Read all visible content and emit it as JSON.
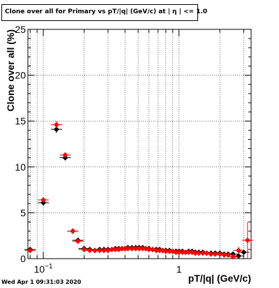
{
  "header": {
    "title": "Clone  over all for Primary vs pT/|q| (GeV/c) at |  η | <= 1.0"
  },
  "footer": {
    "date": "Wed Apr  1 09:31:03 2020"
  },
  "chart_data": {
    "type": "scatter",
    "title": "Clone  over all for Primary vs pT/|q| (GeV/c) at |  η | <= 1.0",
    "xlabel": "pT/|q| (GeV/c)",
    "ylabel": "Clone  over all (%)",
    "xscale": "log",
    "xlim": [
      0.077,
      3.4
    ],
    "ylim": [
      0,
      25
    ],
    "y_ticks": [
      "0",
      "5",
      "10",
      "15",
      "20",
      "25"
    ],
    "x_tick_labels": [
      {
        "value": 0.1,
        "label": "10",
        "sup": "−1"
      },
      {
        "value": 1,
        "label": "1"
      }
    ],
    "grid": true,
    "colors": {
      "series_red": "#ff0000",
      "series_black": "#000000"
    },
    "series": [
      {
        "color": "#000000",
        "marker": "diamond",
        "x": [
          0.08,
          0.1,
          0.125,
          0.145,
          0.165,
          0.18,
          0.2,
          0.22,
          0.24,
          0.26,
          0.28,
          0.3,
          0.32,
          0.34,
          0.36,
          0.38,
          0.4,
          0.42,
          0.45,
          0.48,
          0.51,
          0.54,
          0.57,
          0.6,
          0.64,
          0.68,
          0.72,
          0.76,
          0.8,
          0.85,
          0.9,
          0.95,
          1.0,
          1.06,
          1.12,
          1.18,
          1.25,
          1.32,
          1.4,
          1.5,
          1.6,
          1.72,
          1.85,
          2.0,
          2.15,
          2.3,
          2.5,
          2.75,
          3.0
        ],
        "y": [
          1.0,
          6.1,
          14.1,
          11.0,
          3.0,
          2.0,
          1.1,
          1.0,
          0.9,
          1.0,
          1.0,
          1.0,
          1.0,
          1.1,
          1.1,
          1.1,
          1.1,
          1.2,
          1.2,
          1.2,
          1.2,
          1.2,
          1.1,
          1.1,
          1.0,
          1.0,
          1.0,
          0.9,
          0.9,
          0.9,
          0.8,
          0.8,
          0.8,
          0.8,
          0.7,
          0.8,
          0.8,
          0.7,
          0.7,
          0.7,
          0.6,
          0.6,
          0.6,
          0.6,
          0.5,
          0.5,
          0.5,
          0.3,
          0.7
        ],
        "yerr": [
          0.2,
          0.3,
          0.4,
          0.3,
          0.2,
          0.15,
          0.1,
          0.1,
          0.1,
          0.1,
          0.1,
          0.1,
          0.1,
          0.1,
          0.1,
          0.1,
          0.1,
          0.1,
          0.1,
          0.1,
          0.1,
          0.1,
          0.1,
          0.1,
          0.1,
          0.1,
          0.1,
          0.1,
          0.1,
          0.1,
          0.1,
          0.1,
          0.1,
          0.1,
          0.1,
          0.1,
          0.1,
          0.1,
          0.1,
          0.1,
          0.1,
          0.1,
          0.1,
          0.1,
          0.1,
          0.2,
          0.2,
          0.3,
          0.3
        ]
      },
      {
        "color": "#ff0000",
        "marker": "diamond",
        "x": [
          0.08,
          0.1,
          0.125,
          0.145,
          0.165,
          0.18,
          0.2,
          0.22,
          0.24,
          0.26,
          0.28,
          0.3,
          0.32,
          0.34,
          0.36,
          0.38,
          0.4,
          0.42,
          0.45,
          0.48,
          0.51,
          0.54,
          0.57,
          0.6,
          0.64,
          0.68,
          0.72,
          0.76,
          0.8,
          0.85,
          0.9,
          0.95,
          1.0,
          1.06,
          1.12,
          1.18,
          1.25,
          1.32,
          1.4,
          1.5,
          1.6,
          1.72,
          1.85,
          2.0,
          2.15,
          2.3,
          2.5,
          2.75,
          3.2
        ],
        "y": [
          0.9,
          6.4,
          14.6,
          11.3,
          3.0,
          1.9,
          1.0,
          0.9,
          0.9,
          0.9,
          0.9,
          0.9,
          1.0,
          1.0,
          1.0,
          1.1,
          1.1,
          1.1,
          1.1,
          1.1,
          1.1,
          1.1,
          1.1,
          1.0,
          1.0,
          0.9,
          0.9,
          0.9,
          0.8,
          0.8,
          0.8,
          0.7,
          0.7,
          0.7,
          0.7,
          0.7,
          0.7,
          0.6,
          0.6,
          0.6,
          0.6,
          0.5,
          0.5,
          0.5,
          0.4,
          0.4,
          0.2,
          0.9,
          2.0
        ],
        "yerr": [
          0.2,
          0.3,
          0.4,
          0.3,
          0.2,
          0.15,
          0.1,
          0.1,
          0.1,
          0.1,
          0.1,
          0.1,
          0.1,
          0.1,
          0.1,
          0.1,
          0.1,
          0.1,
          0.1,
          0.1,
          0.1,
          0.1,
          0.1,
          0.1,
          0.1,
          0.1,
          0.1,
          0.1,
          0.1,
          0.1,
          0.1,
          0.1,
          0.1,
          0.1,
          0.1,
          0.1,
          0.1,
          0.1,
          0.1,
          0.1,
          0.1,
          0.1,
          0.1,
          0.1,
          0.2,
          0.2,
          0.3,
          0.4,
          2.0
        ]
      }
    ]
  }
}
